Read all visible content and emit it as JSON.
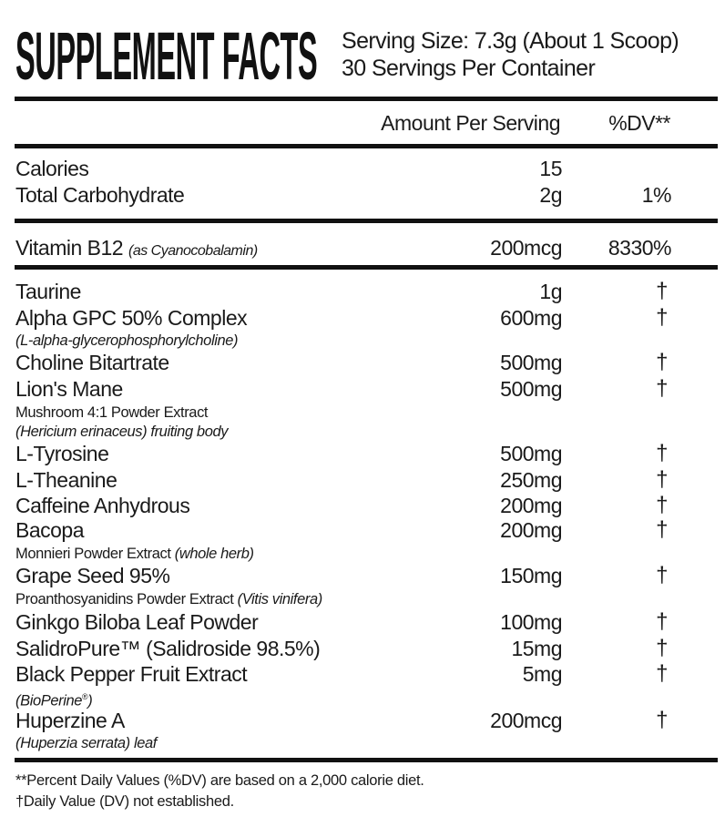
{
  "header": {
    "title": "SUPPLEMENT FACTS",
    "serving_size": "Serving Size: 7.3g (About 1 Scoop)",
    "servings_per_container": "30 Servings Per Container"
  },
  "columns": {
    "amount": "Amount Per Serving",
    "dv": "%DV**"
  },
  "nutrients": [
    {
      "name": "Calories",
      "amount": "15",
      "dv": ""
    },
    {
      "name": "Total Carbohydrate",
      "amount": "2g",
      "dv": "1%"
    }
  ],
  "vitamins": [
    {
      "name": "Vitamin B12",
      "name_note": "(as Cyanocobalamin)",
      "amount": "200mcg",
      "dv": "8330%"
    }
  ],
  "ingredients": [
    {
      "name": "Taurine",
      "amount": "1g",
      "dv": "†",
      "sub": []
    },
    {
      "name": "Alpha GPC 50% Complex",
      "amount": "600mg",
      "dv": "†",
      "sub": [
        [
          {
            "text": "(L-alpha-glycerophosphorylcholine)",
            "italic": true
          }
        ]
      ]
    },
    {
      "name": "Choline Bitartrate",
      "amount": "500mg",
      "dv": "†",
      "sub": []
    },
    {
      "name": "Lion's Mane",
      "amount": "500mg",
      "dv": "†",
      "sub": [
        [
          {
            "text": "Mushroom 4:1 Powder Extract",
            "italic": false
          }
        ],
        [
          {
            "text": "(Hericium erinaceus)",
            "italic": true
          },
          {
            "text": " fruiting body",
            "italic": true
          }
        ]
      ]
    },
    {
      "name": "L-Tyrosine",
      "amount": "500mg",
      "dv": "†",
      "sub": []
    },
    {
      "name": "L-Theanine",
      "amount": "250mg",
      "dv": "†",
      "sub": []
    },
    {
      "name": "Caffeine Anhydrous",
      "amount": "200mg",
      "dv": "†",
      "sub": []
    },
    {
      "name": "Bacopa",
      "amount": "200mg",
      "dv": "†",
      "sub": [
        [
          {
            "text": "Monnieri Powder Extract ",
            "italic": false
          },
          {
            "text": "(whole herb)",
            "italic": true
          }
        ]
      ]
    },
    {
      "name": "Grape Seed 95%",
      "amount": "150mg",
      "dv": "†",
      "sub": [
        [
          {
            "text": "Proanthosyanidins Powder Extract ",
            "italic": false
          },
          {
            "text": "(Vitis vinifera)",
            "italic": true
          }
        ]
      ]
    },
    {
      "name": "Ginkgo Biloba Leaf Powder",
      "amount": "100mg",
      "dv": "†",
      "sub": []
    },
    {
      "name": "SalidroPure™ (Salidroside 98.5%)",
      "amount": "15mg",
      "dv": "†",
      "sub": []
    },
    {
      "name": "Black Pepper Fruit Extract",
      "amount": "5mg",
      "dv": "†",
      "sub": [
        [
          {
            "text": "(BioPerine",
            "italic": true
          },
          {
            "text": "®",
            "italic": true,
            "sup": true
          },
          {
            "text": ")",
            "italic": true
          }
        ]
      ]
    },
    {
      "name": "Huperzine A",
      "amount": "200mcg",
      "dv": "†",
      "sub": [
        [
          {
            "text": "(Huperzia serrata) leaf",
            "italic": true
          }
        ]
      ]
    }
  ],
  "footnotes": [
    "**Percent Daily Values (%DV) are based on a 2,000 calorie diet.",
    "†Daily Value (DV) not established."
  ]
}
